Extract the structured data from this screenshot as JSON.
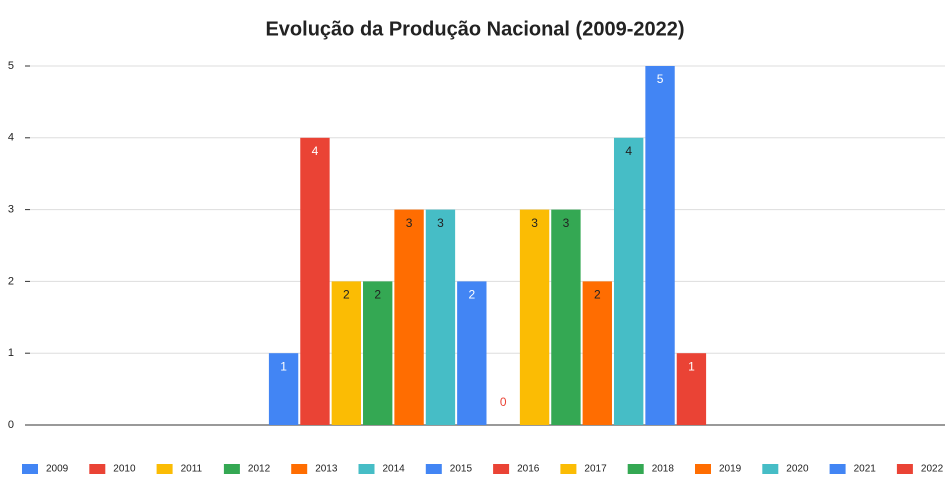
{
  "chart_data": {
    "type": "bar",
    "title": "Evolução da Produção Nacional (2009-2022)",
    "categories": [
      null
    ],
    "series": [
      {
        "name": "2009",
        "color": "#4285f4",
        "values": [
          1
        ]
      },
      {
        "name": "2010",
        "color": "#ea4335",
        "values": [
          4
        ]
      },
      {
        "name": "2011",
        "color": "#fbbc04",
        "values": [
          2
        ]
      },
      {
        "name": "2012",
        "color": "#34a853",
        "values": [
          2
        ]
      },
      {
        "name": "2013",
        "color": "#ff6d01",
        "values": [
          3
        ]
      },
      {
        "name": "2014",
        "color": "#46bdc6",
        "values": [
          3
        ]
      },
      {
        "name": "2015",
        "color": "#4285f4",
        "values": [
          2
        ]
      },
      {
        "name": "2016",
        "color": "#ea4335",
        "values": [
          0
        ]
      },
      {
        "name": "2017",
        "color": "#fbbc04",
        "values": [
          3
        ]
      },
      {
        "name": "2018",
        "color": "#34a853",
        "values": [
          3
        ]
      },
      {
        "name": "2019",
        "color": "#ff6d01",
        "values": [
          2
        ]
      },
      {
        "name": "2020",
        "color": "#46bdc6",
        "values": [
          4
        ]
      },
      {
        "name": "2021",
        "color": "#4285f4",
        "values": [
          5
        ]
      },
      {
        "name": "2022",
        "color": "#ea4335",
        "values": [
          1
        ]
      }
    ],
    "ylim": [
      0,
      5
    ],
    "yticks": [
      0,
      1,
      2,
      3,
      4,
      5
    ],
    "grid": true,
    "legend": "bottom"
  }
}
